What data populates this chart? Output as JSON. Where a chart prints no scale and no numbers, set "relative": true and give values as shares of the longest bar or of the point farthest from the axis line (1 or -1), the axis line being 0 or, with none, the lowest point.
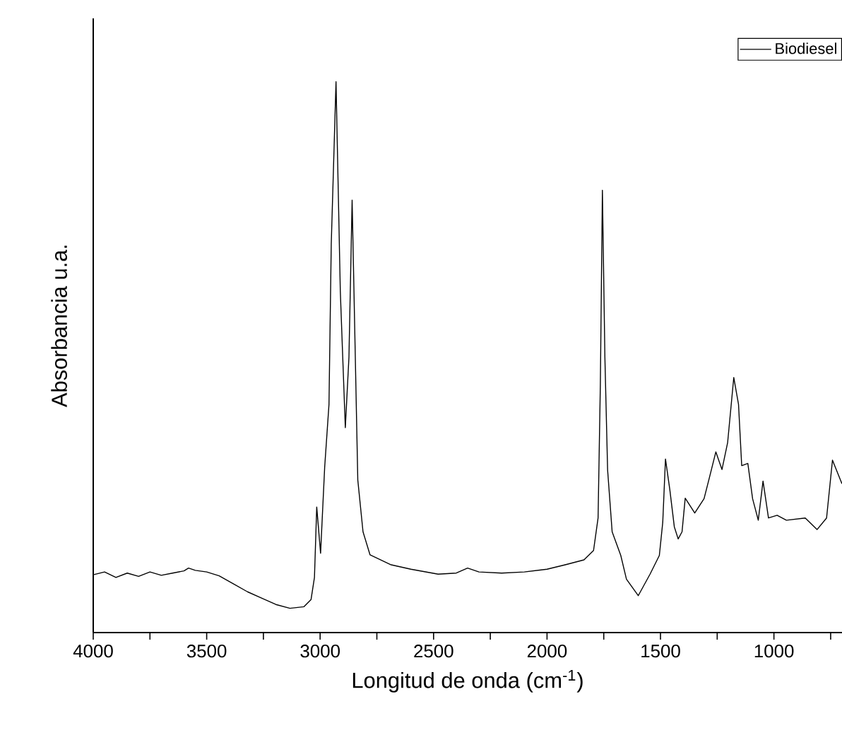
{
  "chart_data": {
    "type": "line",
    "relative": true,
    "xlabel": "Longitud de onda (cm$^{-1}$)",
    "ylabel": "Absorbancia u.a.",
    "xlim": [
      4000,
      700
    ],
    "xticks": [
      4000,
      {
        "value": 3750,
        "label": null
      },
      3500,
      {
        "value": 3250,
        "label": null
      },
      3000,
      {
        "value": 2750,
        "label": null
      },
      2500,
      {
        "value": 2250,
        "label": null
      },
      2000,
      {
        "value": 1750,
        "label": null
      },
      1500,
      {
        "value": 1250,
        "label": null
      },
      1000,
      {
        "value": 750,
        "label": null
      }
    ],
    "tick_labels": "x",
    "legend": "top right",
    "grid": false,
    "series": [
      {
        "name": "Biodiesel",
        "color": "#000000",
        "x": [
          4000,
          3950,
          3900,
          3850,
          3800,
          3750,
          3700,
          3650,
          3600,
          3580,
          3550,
          3500,
          3445,
          3380,
          3320,
          3260,
          3195,
          3133,
          3071,
          3040,
          3025,
          3015,
          2998,
          2980,
          2961,
          2951,
          2930,
          2911,
          2889,
          2873,
          2859,
          2845,
          2834,
          2811,
          2780,
          2687,
          2600,
          2480,
          2400,
          2350,
          2300,
          2200,
          2100,
          2000,
          1920,
          1837,
          1795,
          1775,
          1765,
          1756,
          1745,
          1733,
          1713,
          1675,
          1650,
          1598,
          1546,
          1505,
          1490,
          1478,
          1459,
          1439,
          1422,
          1405,
          1391,
          1349,
          1308,
          1287,
          1256,
          1229,
          1204,
          1177,
          1156,
          1142,
          1115,
          1094,
          1069,
          1048,
          1024,
          986,
          945,
          862,
          810,
          768,
          742,
          707,
          700
        ],
        "values": [
          0.105,
          0.11,
          0.1,
          0.108,
          0.102,
          0.11,
          0.104,
          0.108,
          0.112,
          0.117,
          0.113,
          0.11,
          0.103,
          0.088,
          0.074,
          0.063,
          0.051,
          0.044,
          0.047,
          0.06,
          0.1,
          0.228,
          0.144,
          0.3,
          0.414,
          0.705,
          1.0,
          0.619,
          0.372,
          0.5,
          0.785,
          0.5,
          0.277,
          0.183,
          0.141,
          0.123,
          0.115,
          0.106,
          0.108,
          0.117,
          0.11,
          0.108,
          0.11,
          0.115,
          0.123,
          0.132,
          0.149,
          0.208,
          0.45,
          0.803,
          0.5,
          0.295,
          0.183,
          0.14,
          0.097,
          0.067,
          0.106,
          0.14,
          0.2,
          0.315,
          0.26,
          0.192,
          0.17,
          0.183,
          0.244,
          0.217,
          0.243,
          0.277,
          0.328,
          0.296,
          0.345,
          0.463,
          0.414,
          0.303,
          0.307,
          0.243,
          0.204,
          0.275,
          0.208,
          0.213,
          0.204,
          0.208,
          0.187,
          0.208,
          0.313,
          0.277,
          0.27
        ]
      }
    ]
  }
}
